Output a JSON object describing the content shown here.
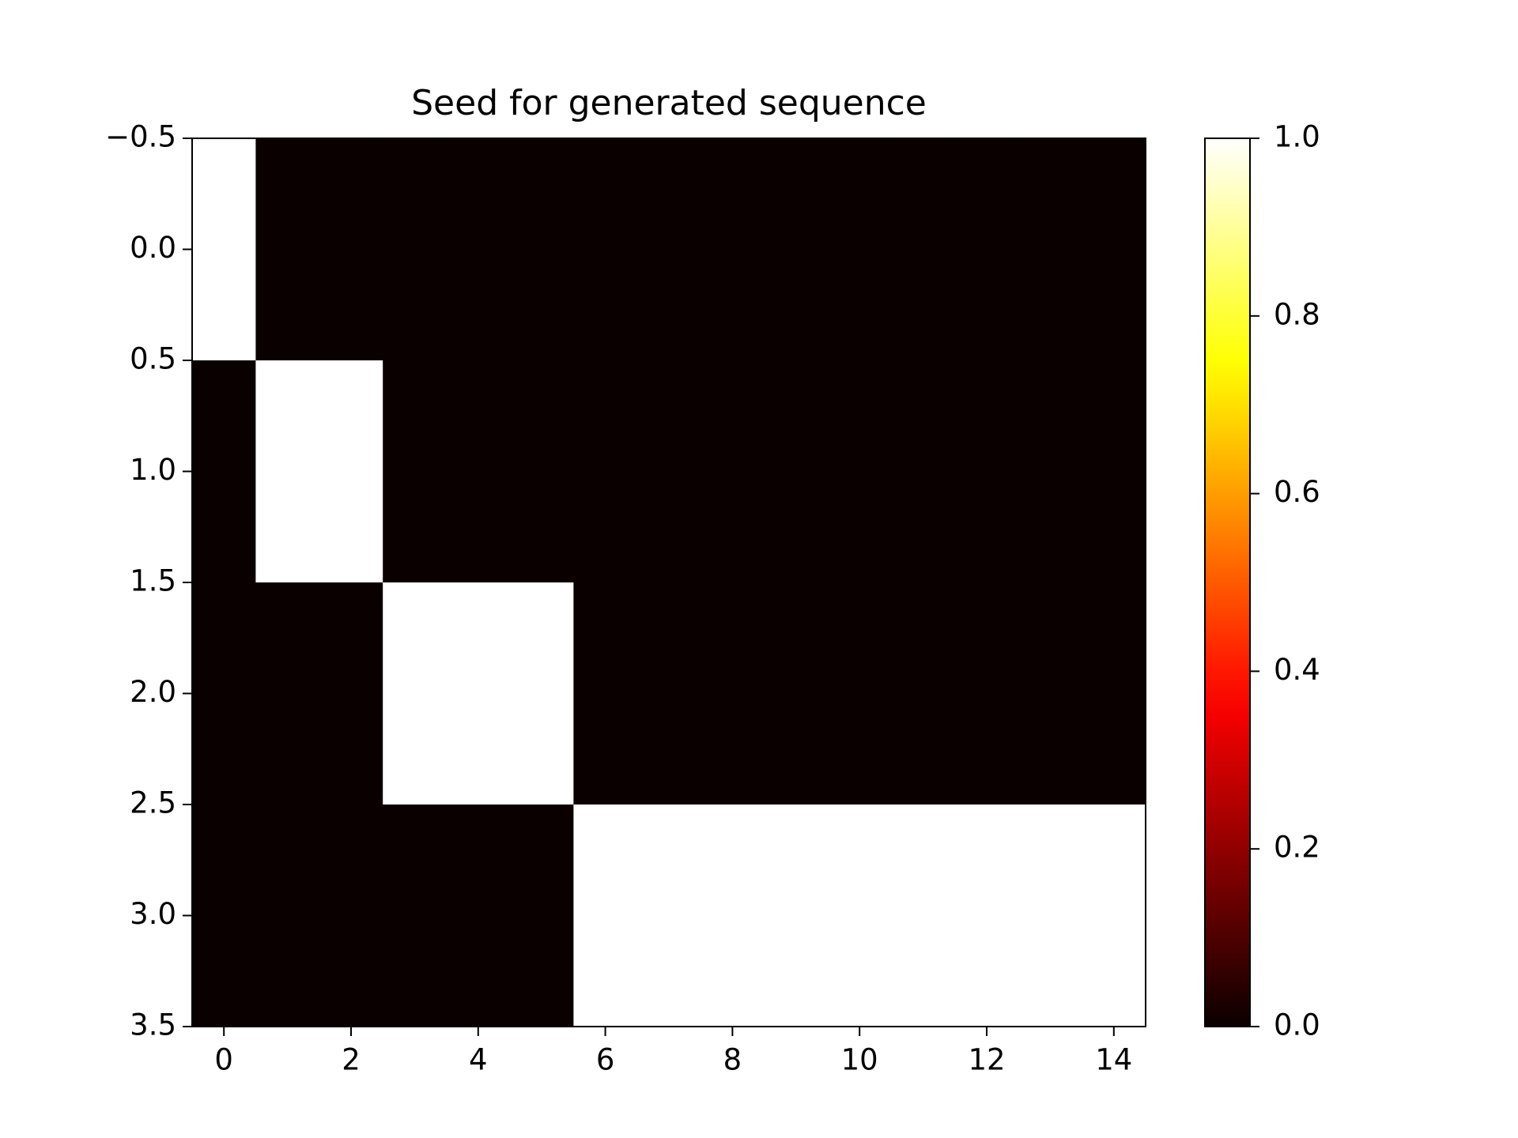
{
  "chart_data": {
    "type": "heatmap",
    "title": "Seed for generated sequence",
    "values": [
      [
        1,
        0,
        0,
        0,
        0,
        0,
        0,
        0,
        0,
        0,
        0,
        0,
        0,
        0,
        0
      ],
      [
        0,
        1,
        1,
        0,
        0,
        0,
        0,
        0,
        0,
        0,
        0,
        0,
        0,
        0,
        0
      ],
      [
        0,
        0,
        0,
        1,
        1,
        1,
        0,
        0,
        0,
        0,
        0,
        0,
        0,
        0,
        0
      ],
      [
        0,
        0,
        0,
        0,
        0,
        0,
        1,
        1,
        1,
        1,
        1,
        1,
        1,
        1,
        1
      ]
    ],
    "colormap": "hot",
    "xlim": [
      -0.5,
      14.5
    ],
    "ylim": [
      3.5,
      -0.5
    ],
    "xticks": [
      0,
      2,
      4,
      6,
      8,
      10,
      12,
      14
    ],
    "yticks": [
      {
        "value": -0.5,
        "label": "−0.5"
      },
      {
        "value": 0,
        "label": "0.0"
      },
      0.5,
      {
        "value": 1,
        "label": "1.0"
      },
      1.5,
      {
        "value": 2,
        "label": "2.0"
      },
      2.5,
      {
        "value": 3,
        "label": "3.0"
      },
      3.5
    ],
    "clim": [
      0,
      1
    ],
    "cticks": [
      {
        "value": 0,
        "label": "0.0"
      },
      0.2,
      0.4,
      0.6,
      0.8,
      {
        "value": 1,
        "label": "1.0"
      }
    ]
  }
}
